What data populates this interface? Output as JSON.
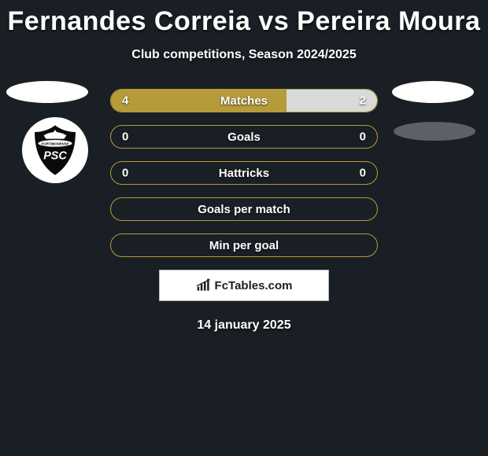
{
  "title": "Fernandes Correia vs Pereira Moura",
  "subtitle": "Club competitions, Season 2024/2025",
  "date": "14 january 2025",
  "footer_brand": "FcTables.com",
  "colors": {
    "background": "#1a1f26",
    "accent": "#b59b3a",
    "accent_light": "#c7b05a",
    "fill_light": "#d7dad6",
    "text": "#ffffff"
  },
  "rows": [
    {
      "label": "Matches",
      "left_val": "4",
      "right_val": "2",
      "left_pct": 66,
      "right_pct": 34,
      "left_fill": "#b59b3a",
      "right_fill": "#d7dad6",
      "border": "#b59b3a"
    },
    {
      "label": "Goals",
      "left_val": "0",
      "right_val": "0",
      "left_pct": 0,
      "right_pct": 0,
      "left_fill": "#b59b3a",
      "right_fill": "#d7dad6",
      "border": "#b59b3a"
    },
    {
      "label": "Hattricks",
      "left_val": "0",
      "right_val": "0",
      "left_pct": 0,
      "right_pct": 0,
      "left_fill": "#b59b3a",
      "right_fill": "#d7dad6",
      "border": "#b59b3a"
    },
    {
      "label": "Goals per match",
      "left_val": "",
      "right_val": "",
      "left_pct": 0,
      "right_pct": 0,
      "left_fill": "#b59b3a",
      "right_fill": "#d7dad6",
      "border": "#b59b3a"
    },
    {
      "label": "Min per goal",
      "left_val": "",
      "right_val": "",
      "left_pct": 0,
      "right_pct": 0,
      "left_fill": "#b59b3a",
      "right_fill": "#d7dad6",
      "border": "#b59b3a"
    }
  ],
  "logo_text": "PSC",
  "logo_subtext": "PORTIMONENSE"
}
